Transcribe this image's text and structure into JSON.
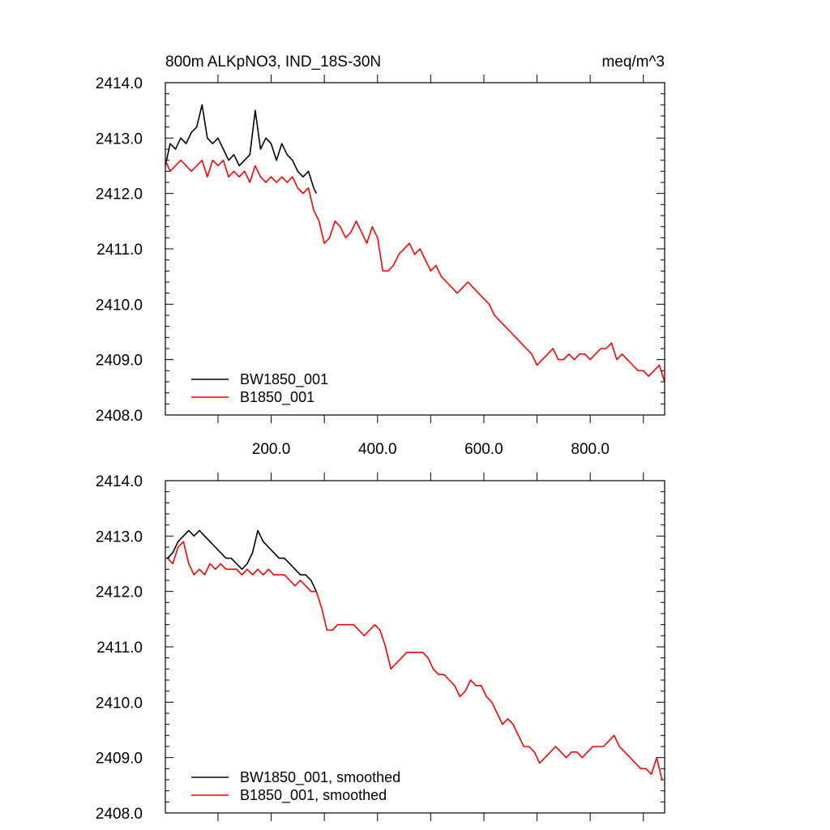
{
  "figure": {
    "title_left": "800m ALKpNO3, IND_18S-30N",
    "title_right": "meq/m^3"
  },
  "colors": {
    "BW1850_001": "#000000",
    "B1850_001": "#ff0000",
    "axis": "#000000"
  },
  "chart_data": [
    {
      "type": "line",
      "xlim": [
        1,
        940
      ],
      "ylim": [
        2408.0,
        2414.0
      ],
      "xticks": [
        200,
        400,
        600,
        800
      ],
      "xtick_labels": [
        "200.0",
        "400.0",
        "600.0",
        "800.0"
      ],
      "yticks": [
        2408.0,
        2409.0,
        2410.0,
        2411.0,
        2412.0,
        2413.0,
        2414.0
      ],
      "ytick_labels": [
        "2408.0",
        "2409.0",
        "2410.0",
        "2411.0",
        "2412.0",
        "2413.0",
        "2414.0"
      ],
      "legend_position": "bottom-left",
      "grid": false,
      "series": [
        {
          "name": "BW1850_001",
          "color": "#000000",
          "x": [
            1,
            10,
            20,
            30,
            40,
            50,
            60,
            70,
            80,
            90,
            100,
            110,
            120,
            130,
            140,
            150,
            160,
            170,
            180,
            190,
            200,
            210,
            220,
            230,
            240,
            250,
            260,
            270,
            280,
            285
          ],
          "y": [
            2412.5,
            2412.9,
            2412.8,
            2413.0,
            2412.9,
            2413.1,
            2413.2,
            2413.6,
            2413.0,
            2412.9,
            2413.0,
            2412.8,
            2412.6,
            2412.7,
            2412.5,
            2412.6,
            2412.7,
            2413.5,
            2412.8,
            2413.0,
            2412.9,
            2412.6,
            2412.9,
            2412.7,
            2412.6,
            2412.4,
            2412.3,
            2412.4,
            2412.1,
            2412.0
          ]
        },
        {
          "name": "B1850_001",
          "color": "#ff0000",
          "x": [
            1,
            10,
            20,
            30,
            40,
            50,
            60,
            70,
            80,
            90,
            100,
            110,
            120,
            130,
            140,
            150,
            160,
            170,
            180,
            190,
            200,
            210,
            220,
            230,
            240,
            250,
            260,
            270,
            280,
            290,
            300,
            310,
            320,
            330,
            340,
            350,
            360,
            370,
            380,
            390,
            400,
            410,
            420,
            430,
            440,
            450,
            460,
            470,
            480,
            490,
            500,
            510,
            520,
            530,
            540,
            550,
            560,
            570,
            580,
            590,
            600,
            610,
            620,
            630,
            640,
            650,
            660,
            670,
            680,
            690,
            700,
            710,
            720,
            730,
            740,
            750,
            760,
            770,
            780,
            790,
            800,
            810,
            820,
            830,
            840,
            850,
            860,
            870,
            880,
            890,
            900,
            910,
            920,
            930,
            940
          ],
          "y": [
            2412.6,
            2412.4,
            2412.5,
            2412.6,
            2412.5,
            2412.4,
            2412.5,
            2412.6,
            2412.3,
            2412.6,
            2412.5,
            2412.6,
            2412.3,
            2412.4,
            2412.3,
            2412.4,
            2412.2,
            2412.5,
            2412.3,
            2412.2,
            2412.3,
            2412.2,
            2412.3,
            2412.2,
            2412.3,
            2412.1,
            2412.0,
            2412.1,
            2411.7,
            2411.5,
            2411.1,
            2411.2,
            2411.5,
            2411.4,
            2411.2,
            2411.3,
            2411.5,
            2411.3,
            2411.1,
            2411.4,
            2411.2,
            2410.6,
            2410.6,
            2410.7,
            2410.9,
            2411.0,
            2411.1,
            2410.9,
            2411.0,
            2410.8,
            2410.6,
            2410.7,
            2410.5,
            2410.4,
            2410.3,
            2410.2,
            2410.3,
            2410.4,
            2410.3,
            2410.2,
            2410.1,
            2410.0,
            2409.8,
            2409.7,
            2409.6,
            2409.5,
            2409.4,
            2409.3,
            2409.2,
            2409.1,
            2408.9,
            2409.0,
            2409.1,
            2409.2,
            2409.0,
            2409.0,
            2409.1,
            2409.0,
            2409.1,
            2409.1,
            2409.0,
            2409.1,
            2409.2,
            2409.2,
            2409.3,
            2409.0,
            2409.1,
            2409.0,
            2408.9,
            2408.8,
            2408.8,
            2408.7,
            2408.8,
            2408.9,
            2408.6
          ]
        }
      ]
    },
    {
      "type": "line",
      "xlim": [
        1,
        940
      ],
      "ylim": [
        2408.0,
        2414.0
      ],
      "yticks": [
        2408.0,
        2409.0,
        2410.0,
        2411.0,
        2412.0,
        2413.0,
        2414.0
      ],
      "ytick_labels": [
        "2408.0",
        "2409.0",
        "2410.0",
        "2411.0",
        "2412.0",
        "2413.0",
        "2414.0"
      ],
      "legend_position": "bottom-left",
      "grid": false,
      "series": [
        {
          "name": "BW1850_001, smoothed",
          "color": "#000000",
          "x": [
            5,
            15,
            25,
            35,
            45,
            55,
            65,
            75,
            85,
            95,
            105,
            115,
            125,
            135,
            145,
            155,
            165,
            175,
            185,
            195,
            205,
            215,
            225,
            235,
            245,
            255,
            265,
            275,
            285
          ],
          "y": [
            2412.6,
            2412.7,
            2412.9,
            2413.0,
            2413.1,
            2413.0,
            2413.1,
            2413.0,
            2412.9,
            2412.8,
            2412.7,
            2412.6,
            2412.6,
            2412.5,
            2412.4,
            2412.5,
            2412.7,
            2413.1,
            2412.9,
            2412.8,
            2412.7,
            2412.6,
            2412.6,
            2412.5,
            2412.4,
            2412.3,
            2412.3,
            2412.2,
            2412.0
          ]
        },
        {
          "name": "B1850_001, smoothed",
          "color": "#ff0000",
          "x": [
            5,
            15,
            25,
            35,
            45,
            55,
            65,
            75,
            85,
            95,
            105,
            115,
            125,
            135,
            145,
            155,
            165,
            175,
            185,
            195,
            205,
            215,
            225,
            235,
            245,
            255,
            265,
            275,
            285,
            295,
            305,
            315,
            325,
            335,
            345,
            355,
            365,
            375,
            385,
            395,
            405,
            415,
            425,
            435,
            445,
            455,
            465,
            475,
            485,
            495,
            505,
            515,
            525,
            535,
            545,
            555,
            565,
            575,
            585,
            595,
            605,
            615,
            625,
            635,
            645,
            655,
            665,
            675,
            685,
            695,
            705,
            715,
            725,
            735,
            745,
            755,
            765,
            775,
            785,
            795,
            805,
            815,
            825,
            835,
            845,
            855,
            865,
            875,
            885,
            895,
            905,
            915,
            925,
            935
          ],
          "y": [
            2412.6,
            2412.5,
            2412.8,
            2412.9,
            2412.5,
            2412.3,
            2412.4,
            2412.3,
            2412.5,
            2412.4,
            2412.5,
            2412.4,
            2412.4,
            2412.4,
            2412.3,
            2412.4,
            2412.3,
            2412.4,
            2412.3,
            2412.4,
            2412.3,
            2412.3,
            2412.3,
            2412.2,
            2412.1,
            2412.2,
            2412.1,
            2412.0,
            2412.0,
            2411.7,
            2411.3,
            2411.3,
            2411.4,
            2411.4,
            2411.4,
            2411.4,
            2411.3,
            2411.2,
            2411.3,
            2411.4,
            2411.3,
            2411.0,
            2410.6,
            2410.7,
            2410.8,
            2410.9,
            2410.9,
            2410.9,
            2410.9,
            2410.8,
            2410.6,
            2410.5,
            2410.5,
            2410.4,
            2410.3,
            2410.1,
            2410.2,
            2410.4,
            2410.3,
            2410.3,
            2410.1,
            2410.0,
            2409.8,
            2409.6,
            2409.7,
            2409.6,
            2409.4,
            2409.2,
            2409.2,
            2409.1,
            2408.9,
            2409.0,
            2409.1,
            2409.2,
            2409.1,
            2409.0,
            2409.1,
            2409.1,
            2409.0,
            2409.1,
            2409.2,
            2409.2,
            2409.2,
            2409.3,
            2409.4,
            2409.2,
            2409.1,
            2409.0,
            2408.9,
            2408.8,
            2408.8,
            2408.7,
            2409.0,
            2408.6
          ]
        }
      ]
    }
  ]
}
